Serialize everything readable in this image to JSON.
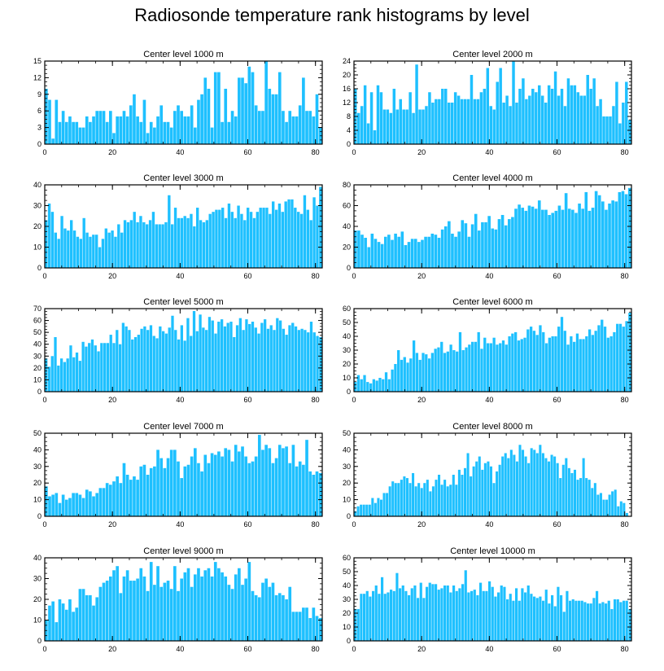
{
  "title": "Radiosonde temperature rank histograms by level",
  "colors": {
    "bar": "#1ec0ff",
    "bar_edge": "#ffffff",
    "axis": "#000000"
  },
  "chart_data": [
    {
      "type": "bar",
      "title": "Center level 1000 m",
      "xlim": [
        0,
        82
      ],
      "ylim": [
        0,
        15
      ],
      "xticks": [
        0,
        20,
        40,
        60,
        80
      ],
      "yticks": [
        0,
        3,
        6,
        9,
        12,
        15
      ],
      "values": [
        10,
        8,
        1,
        8,
        4,
        6,
        4,
        5,
        4,
        4,
        3,
        3,
        5,
        4,
        5,
        6,
        6,
        6,
        4,
        6,
        2,
        5,
        5,
        6,
        5,
        7,
        9,
        5,
        4,
        8,
        2,
        4,
        3,
        5,
        7,
        4,
        4,
        3,
        6,
        7,
        6,
        5,
        5,
        7,
        3,
        8,
        9,
        12,
        10,
        3,
        13,
        13,
        4,
        10,
        4,
        6,
        5,
        12,
        12,
        11,
        14,
        13,
        7,
        6,
        6,
        15,
        10,
        9,
        9,
        13,
        6,
        4,
        6,
        5,
        5,
        7,
        12,
        6,
        6,
        5,
        9,
        3
      ]
    },
    {
      "type": "bar",
      "title": "Center level 2000 m",
      "xlim": [
        0,
        82
      ],
      "ylim": [
        0,
        24
      ],
      "xticks": [
        0,
        20,
        40,
        60,
        80
      ],
      "yticks": [
        0,
        4,
        8,
        12,
        16,
        20,
        24
      ],
      "values": [
        16,
        9,
        11,
        17,
        6,
        15,
        4,
        17,
        15,
        10,
        10,
        9,
        16,
        10,
        13,
        10,
        10,
        15,
        9,
        23,
        10,
        10,
        11,
        15,
        12,
        13,
        13,
        16,
        16,
        12,
        12,
        15,
        14,
        13,
        13,
        13,
        20,
        13,
        13,
        15,
        16,
        22,
        11,
        10,
        18,
        22,
        12,
        14,
        11,
        24,
        12,
        16,
        19,
        13,
        14,
        16,
        15,
        17,
        14,
        12,
        17,
        16,
        21,
        14,
        16,
        11,
        19,
        17,
        17,
        15,
        14,
        14,
        20,
        16,
        19,
        11,
        13,
        8,
        8,
        8,
        11,
        18,
        6,
        12,
        18,
        7
      ]
    },
    {
      "type": "bar",
      "title": "Center level 3000 m",
      "xlim": [
        0,
        82
      ],
      "ylim": [
        0,
        40
      ],
      "xticks": [
        0,
        20,
        40,
        60,
        80
      ],
      "yticks": [
        0,
        10,
        20,
        30,
        40
      ],
      "values": [
        23,
        31,
        27,
        17,
        14,
        25,
        19,
        18,
        23,
        18,
        15,
        14,
        24,
        17,
        15,
        16,
        16,
        10,
        14,
        19,
        17,
        18,
        15,
        21,
        17,
        23,
        22,
        23,
        27,
        22,
        25,
        22,
        21,
        23,
        27,
        21,
        21,
        21,
        22,
        35,
        21,
        29,
        24,
        24,
        25,
        24,
        26,
        20,
        29,
        23,
        22,
        23,
        26,
        27,
        28,
        28,
        29,
        24,
        31,
        27,
        24,
        30,
        26,
        23,
        29,
        27,
        24,
        27,
        29,
        29,
        29,
        26,
        32,
        28,
        31,
        27,
        32,
        33,
        33,
        29,
        27,
        26,
        35,
        28,
        23,
        34,
        30,
        39
      ]
    },
    {
      "type": "bar",
      "title": "Center level 4000 m",
      "xlim": [
        0,
        82
      ],
      "ylim": [
        0,
        80
      ],
      "xticks": [
        0,
        20,
        40,
        60,
        80
      ],
      "yticks": [
        0,
        20,
        40,
        60,
        80
      ],
      "values": [
        36,
        36,
        32,
        29,
        20,
        33,
        28,
        25,
        23,
        30,
        32,
        27,
        33,
        30,
        35,
        22,
        25,
        28,
        28,
        25,
        27,
        30,
        30,
        33,
        32,
        29,
        37,
        40,
        45,
        33,
        30,
        35,
        46,
        43,
        30,
        42,
        52,
        36,
        44,
        44,
        50,
        38,
        37,
        47,
        51,
        41,
        47,
        49,
        57,
        61,
        58,
        55,
        60,
        59,
        57,
        65,
        56,
        56,
        51,
        53,
        55,
        60,
        56,
        72,
        57,
        56,
        53,
        62,
        57,
        73,
        55,
        58,
        74,
        70,
        64,
        56,
        62,
        65,
        64,
        73,
        74,
        71,
        77
      ]
    },
    {
      "type": "bar",
      "title": "Center level 5000 m",
      "xlim": [
        0,
        82
      ],
      "ylim": [
        0,
        70
      ],
      "xticks": [
        0,
        20,
        40,
        60,
        80
      ],
      "yticks": [
        0,
        10,
        20,
        30,
        40,
        50,
        60,
        70
      ],
      "values": [
        28,
        21,
        30,
        46,
        22,
        28,
        25,
        28,
        39,
        29,
        33,
        26,
        42,
        38,
        41,
        44,
        39,
        34,
        41,
        41,
        41,
        48,
        41,
        52,
        40,
        58,
        55,
        52,
        44,
        46,
        48,
        53,
        55,
        52,
        56,
        47,
        45,
        55,
        51,
        49,
        54,
        64,
        52,
        44,
        56,
        43,
        62,
        47,
        68,
        51,
        65,
        54,
        52,
        63,
        60,
        49,
        59,
        61,
        55,
        58,
        59,
        46,
        56,
        62,
        52,
        61,
        57,
        59,
        54,
        49,
        58,
        61,
        53,
        56,
        52,
        62,
        60,
        53,
        48,
        56,
        58,
        55,
        52,
        53,
        52,
        50,
        59,
        50,
        47,
        46
      ]
    },
    {
      "type": "bar",
      "title": "Center level 6000 m",
      "xlim": [
        0,
        82
      ],
      "ylim": [
        0,
        60
      ],
      "xticks": [
        0,
        20,
        40,
        60,
        80
      ],
      "yticks": [
        0,
        10,
        20,
        30,
        40,
        50,
        60
      ],
      "values": [
        7,
        12,
        9,
        12,
        7,
        6,
        9,
        8,
        10,
        9,
        14,
        9,
        16,
        20,
        30,
        23,
        25,
        21,
        24,
        37,
        28,
        23,
        28,
        27,
        24,
        28,
        31,
        32,
        36,
        28,
        29,
        34,
        30,
        29,
        43,
        30,
        32,
        34,
        36,
        36,
        43,
        31,
        39,
        35,
        35,
        39,
        34,
        35,
        37,
        34,
        40,
        42,
        43,
        37,
        38,
        39,
        45,
        47,
        44,
        41,
        48,
        43,
        35,
        39,
        40,
        40,
        47,
        54,
        44,
        34,
        40,
        36,
        42,
        38,
        38,
        40,
        45,
        41,
        44,
        48,
        52,
        47,
        39,
        40,
        43,
        49,
        49,
        47,
        51,
        57
      ]
    },
    {
      "type": "bar",
      "title": "Center level 7000 m",
      "xlim": [
        0,
        82
      ],
      "ylim": [
        0,
        50
      ],
      "xticks": [
        0,
        20,
        40,
        60,
        80
      ],
      "yticks": [
        0,
        10,
        20,
        30,
        40,
        50
      ],
      "values": [
        18,
        12,
        13,
        14,
        8,
        13,
        10,
        11,
        14,
        14,
        13,
        11,
        16,
        15,
        12,
        14,
        17,
        17,
        20,
        19,
        21,
        24,
        20,
        32,
        25,
        22,
        24,
        22,
        30,
        31,
        25,
        29,
        30,
        40,
        35,
        29,
        35,
        40,
        40,
        33,
        23,
        30,
        31,
        36,
        41,
        32,
        27,
        37,
        32,
        38,
        37,
        39,
        36,
        41,
        40,
        33,
        43,
        39,
        42,
        36,
        32,
        33,
        36,
        49,
        40,
        43,
        41,
        32,
        35,
        43,
        41,
        42,
        32,
        43,
        30,
        33,
        31,
        46,
        27,
        25,
        27,
        26
      ]
    },
    {
      "type": "bar",
      "title": "Center level 8000 m",
      "xlim": [
        0,
        82
      ],
      "ylim": [
        0,
        50
      ],
      "xticks": [
        0,
        20,
        40,
        60,
        80
      ],
      "yticks": [
        0,
        10,
        20,
        30,
        40,
        50
      ],
      "values": [
        3,
        6,
        7,
        7,
        7,
        7,
        11,
        8,
        11,
        10,
        14,
        14,
        18,
        21,
        20,
        20,
        22,
        24,
        23,
        20,
        26,
        18,
        20,
        17,
        20,
        22,
        15,
        18,
        22,
        25,
        19,
        22,
        18,
        19,
        25,
        19,
        28,
        25,
        29,
        38,
        24,
        30,
        33,
        36,
        28,
        32,
        33,
        30,
        20,
        27,
        31,
        36,
        38,
        35,
        40,
        37,
        33,
        43,
        40,
        36,
        32,
        41,
        40,
        38,
        43,
        38,
        35,
        33,
        37,
        36,
        32,
        23,
        31,
        35,
        29,
        26,
        28,
        22,
        23,
        35,
        23,
        22,
        17,
        20,
        13,
        14,
        10,
        10,
        13,
        15,
        16,
        6,
        9,
        8,
        2,
        0
      ]
    },
    {
      "type": "bar",
      "title": "Center level 9000 m",
      "xlim": [
        0,
        82
      ],
      "ylim": [
        0,
        40
      ],
      "xticks": [
        0,
        20,
        40,
        60,
        80
      ],
      "yticks": [
        0,
        10,
        20,
        30,
        40
      ],
      "values": [
        10,
        17,
        19,
        9,
        20,
        18,
        15,
        20,
        14,
        16,
        25,
        25,
        22,
        22,
        17,
        21,
        26,
        28,
        29,
        31,
        34,
        36,
        23,
        31,
        34,
        29,
        29,
        30,
        35,
        31,
        24,
        38,
        27,
        36,
        26,
        28,
        29,
        25,
        36,
        24,
        30,
        33,
        35,
        26,
        32,
        35,
        31,
        34,
        35,
        31,
        38,
        35,
        33,
        31,
        27,
        25,
        32,
        35,
        27,
        30,
        38,
        24,
        22,
        21,
        28,
        30,
        26,
        28,
        22,
        23,
        22,
        20,
        26,
        14,
        14,
        14,
        16,
        16,
        11,
        16,
        12,
        11
      ]
    },
    {
      "type": "bar",
      "title": "Center level 10000 m",
      "xlim": [
        0,
        82
      ],
      "ylim": [
        0,
        60
      ],
      "xticks": [
        0,
        20,
        40,
        60,
        80
      ],
      "yticks": [
        0,
        10,
        20,
        30,
        40,
        50,
        60
      ],
      "values": [
        23,
        23,
        34,
        34,
        36,
        32,
        36,
        40,
        34,
        46,
        34,
        35,
        37,
        36,
        49,
        38,
        40,
        36,
        33,
        38,
        40,
        31,
        42,
        31,
        39,
        42,
        41,
        41,
        37,
        38,
        40,
        40,
        35,
        40,
        36,
        38,
        41,
        51,
        35,
        36,
        37,
        33,
        42,
        36,
        36,
        43,
        39,
        32,
        35,
        40,
        39,
        30,
        34,
        29,
        38,
        29,
        38,
        35,
        40,
        34,
        32,
        31,
        32,
        29,
        37,
        27,
        33,
        25,
        39,
        33,
        21,
        36,
        29,
        30,
        29,
        29,
        29,
        28,
        27,
        27,
        31,
        36,
        27,
        28,
        27,
        29,
        23,
        30,
        30,
        28,
        29,
        29,
        23
      ]
    }
  ]
}
